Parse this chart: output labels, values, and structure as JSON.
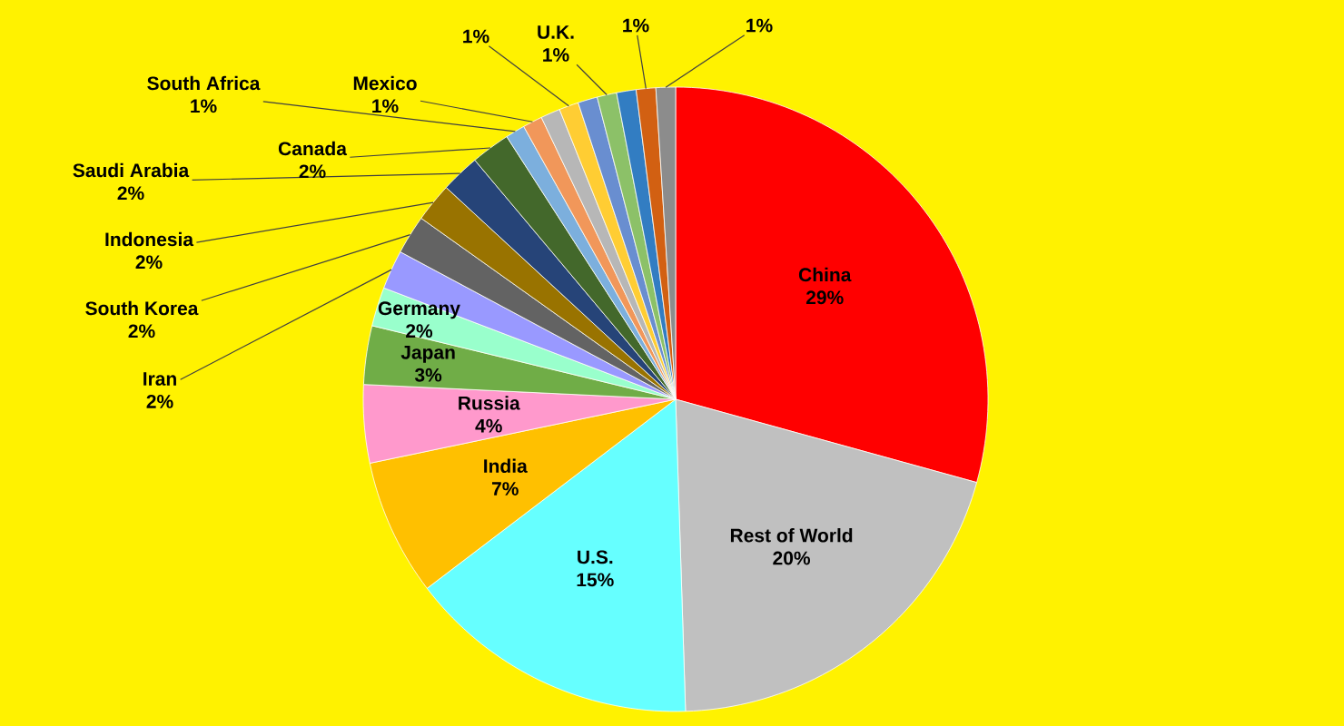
{
  "chart_data": {
    "type": "pie",
    "categories": [
      "China",
      "Rest of World",
      "U.S.",
      "India",
      "Russia",
      "Japan",
      "Germany",
      "Iran",
      "South Korea",
      "Indonesia",
      "Saudi Arabia",
      "Canada",
      "South Africa",
      "Mexico",
      null,
      null,
      null,
      "U.K.",
      null,
      null,
      null
    ],
    "values": [
      29,
      20,
      15,
      7,
      4,
      3,
      2,
      2,
      2,
      2,
      2,
      2,
      1,
      1,
      1,
      1,
      1,
      1,
      1,
      1,
      1
    ],
    "value_labels": [
      "29%",
      "20%",
      "15%",
      "7%",
      "4%",
      "3%",
      "2%",
      "2%",
      "2%",
      "2%",
      "2%",
      "2%",
      "1%",
      "1%",
      null,
      "1%",
      null,
      "1%",
      null,
      "1%",
      "1%"
    ],
    "colors": [
      "#ff0000",
      "#c0c0c0",
      "#66ffff",
      "#ffc000",
      "#ff99cc",
      "#70ad47",
      "#99ffcc",
      "#9999ff",
      "#636363",
      "#997300",
      "#264478",
      "#43682b",
      "#7cafdd",
      "#f1975a",
      "#b7b7b7",
      "#ffcd33",
      "#698ed0",
      "#8cc168",
      "#327dc2",
      "#d26012",
      "#8c8c8c"
    ]
  }
}
